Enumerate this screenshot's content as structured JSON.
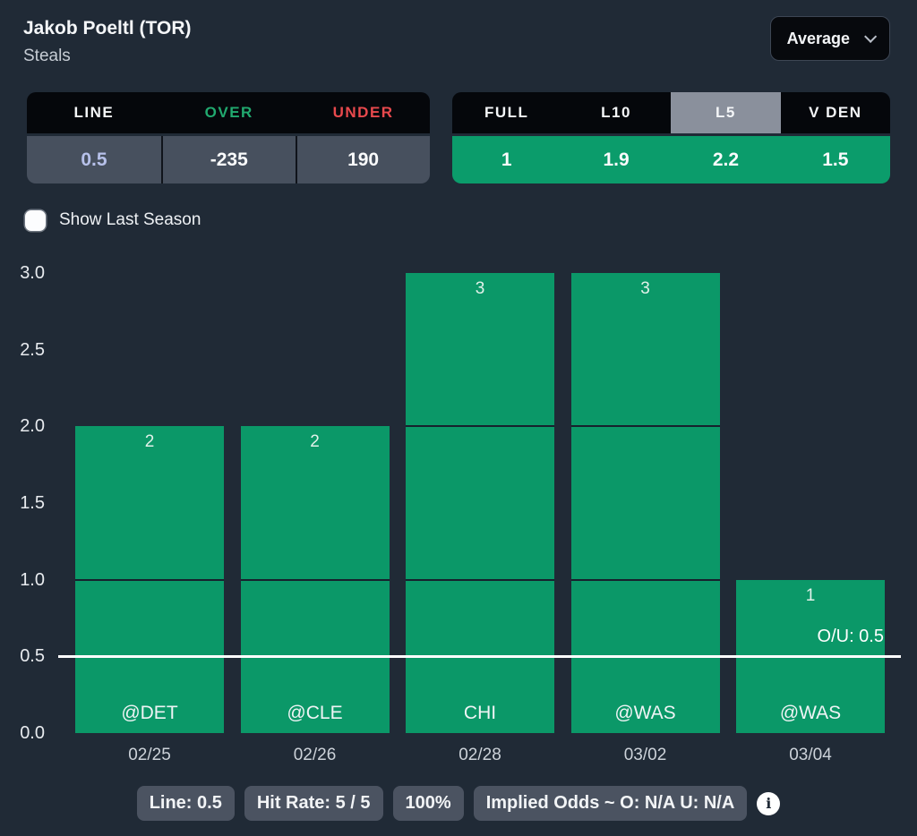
{
  "header": {
    "title": "Jakob Poeltl (TOR)",
    "subtitle": "Steals",
    "dropdown_label": "Average"
  },
  "odds_table": {
    "headers": [
      "LINE",
      "OVER",
      "UNDER"
    ],
    "header_colors": [
      "#f4f6f8",
      "#21a96f",
      "#e8494d"
    ],
    "values": [
      "0.5",
      "-235",
      "190"
    ],
    "value_colors": [
      "#b7c1ea",
      "#fafbfc",
      "#fafbfc"
    ]
  },
  "splits_table": {
    "tabs": [
      "FULL",
      "L10",
      "L5",
      "V DEN"
    ],
    "selected_index": 2,
    "selected_tab_color": "#8a909c",
    "values": [
      "1",
      "1.9",
      "2.2",
      "1.5"
    ],
    "row_color": "#0b9c6b"
  },
  "controls": {
    "show_last_season_label": "Show Last Season",
    "checkbox_checked": false
  },
  "chart_data": {
    "type": "bar",
    "title": "",
    "xlabel": "",
    "ylabel": "",
    "categories": [
      "02/25",
      "02/26",
      "02/28",
      "03/02",
      "03/04"
    ],
    "opponents": [
      "@DET",
      "@CLE",
      "CHI",
      "@WAS",
      "@WAS"
    ],
    "values": [
      2,
      2,
      3,
      3,
      1
    ],
    "y_ticks": [
      "3.0",
      "2.5",
      "2.0",
      "1.5",
      "1.0",
      "0.5",
      "0.0"
    ],
    "ylim": [
      0,
      3
    ],
    "grid": false,
    "bar_color": "#0b9868",
    "over_under_line": {
      "value": 0.5,
      "label": "O/U: 0.5",
      "color": "#ffffff"
    }
  },
  "footer": {
    "badges": [
      "Line: 0.5",
      "Hit Rate: 5 / 5",
      "100%",
      "Implied Odds ~ O: N/A U: N/A"
    ],
    "info_icon": "info-icon"
  },
  "colors": {
    "background": "#202a36",
    "table_header_bg": "#05070b",
    "odds_value_row_bg": "#47505e"
  }
}
